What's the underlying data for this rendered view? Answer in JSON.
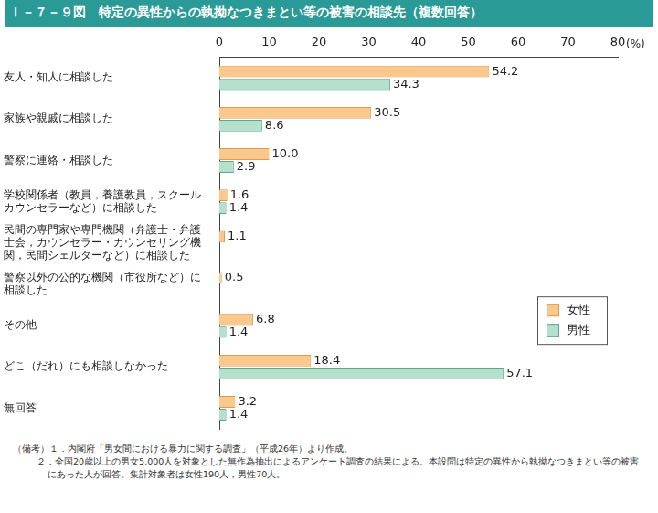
{
  "chart_data": {
    "type": "bar",
    "orientation": "horizontal",
    "title": "Ｉ－７－９図　特定の異性からの執拗なつきまとい等の被害の相談先（複数回答）",
    "xlabel": "(%)",
    "categories": [
      "友人・知人に相談した",
      "家族や親戚に相談した",
      "警察に連絡・相談した",
      [
        "学校関係者（教員，養護教員，スクール",
        "カウンセラーなど）に相談した"
      ],
      [
        "民間の専門家や専門機関（弁護士・弁護",
        "士会，カウンセラー・カウンセリング機",
        "関，民間シェルターなど）に相談した"
      ],
      [
        "警察以外の公的な機関（市役所など）に",
        "相談した"
      ],
      "その他",
      "どこ（だれ）にも相談しなかった",
      "無回答"
    ],
    "series": [
      {
        "name": "女性",
        "color": "#fac88c",
        "values": [
          54.2,
          30.5,
          10.0,
          1.6,
          1.1,
          0.5,
          6.8,
          18.4,
          3.2
        ],
        "value_labels": [
          "54.2",
          "30.5",
          "10.0",
          "1.6",
          "1.1",
          "0.5",
          "6.8",
          "18.4",
          "3.2"
        ]
      },
      {
        "name": "男性",
        "color": "#b4e0cc",
        "values": [
          34.3,
          8.6,
          2.9,
          1.4,
          null,
          null,
          1.4,
          57.1,
          1.4
        ],
        "value_labels": [
          "34.3",
          "8.6",
          "2.9",
          "1.4",
          null,
          null,
          "1.4",
          "57.1",
          "1.4"
        ]
      }
    ],
    "xlim": [
      0,
      80
    ],
    "xticks": [
      0,
      10,
      20,
      30,
      40,
      50,
      60,
      70,
      80
    ],
    "grid": false,
    "legend": "lower right",
    "data_labels": true,
    "notes": [
      "（備考）１．内閣府「男女間における暴力に関する調査」（平成26年）より作成。",
      "２．全国20歳以上の男女5,000人を対象とした無作為抽出によるアンケート調査の結果による。本設問は特定の異性から執拗なつきまとい等の被害にあった人が回答。集計対象者は女性190人，男性70人。"
    ]
  }
}
